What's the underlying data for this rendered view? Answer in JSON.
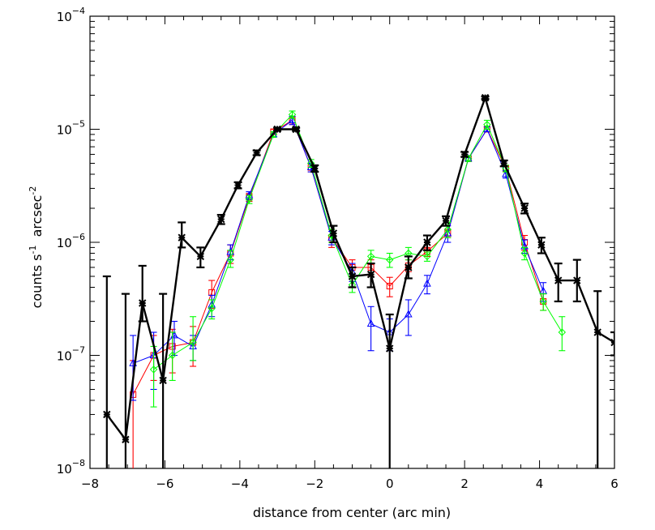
{
  "chart_data": {
    "type": "scatter",
    "xlabel": "distance from center (arc min)",
    "ylabel": {
      "text": "counts s",
      "sup1": "-1",
      "mid": "  arcsec",
      "sup2": "-2"
    },
    "xlim": [
      -8,
      6
    ],
    "ylim": [
      1e-08,
      0.0001
    ],
    "yscale": "log",
    "grid": false,
    "legend": "none",
    "x_ticks": [
      -8,
      -6,
      -4,
      -2,
      0,
      2,
      4,
      6
    ],
    "x_tick_labels": [
      "−8",
      "−6",
      "−4",
      "−2",
      "0",
      "2",
      "4",
      "6"
    ],
    "y_ticks": [
      {
        "base": "10",
        "exp": "−8",
        "value": 1e-08
      },
      {
        "base": "10",
        "exp": "−7",
        "value": 1e-07
      },
      {
        "base": "10",
        "exp": "−6",
        "value": 1e-06
      },
      {
        "base": "10",
        "exp": "−5",
        "value": 1e-05
      },
      {
        "base": "10",
        "exp": "−4",
        "value": 0.0001
      }
    ],
    "series": [
      {
        "color": "#ff0000",
        "marker": "square",
        "line_width": 1,
        "points": [
          [
            -6.85,
            4.5e-08,
            1e-08,
            9e-08
          ],
          [
            -6.3,
            1e-07,
            6e-08,
            1.5e-07
          ],
          [
            -5.8,
            1.2e-07,
            7e-08,
            1.7e-07
          ],
          [
            -5.25,
            1.3e-07,
            8e-08,
            1.8e-07
          ],
          [
            -4.75,
            3.6e-07,
            2.6e-07,
            4.6e-07
          ],
          [
            -4.25,
            8e-07,
            6.5e-07,
            9.5e-07
          ],
          [
            -3.75,
            2.5e-06,
            2.3e-06,
            2.7e-06
          ],
          [
            -3.1,
            9.5e-06,
            9e-06,
            1e-05
          ],
          [
            -2.6,
            1.2e-05,
            1.1e-05,
            1.3e-05
          ],
          [
            -2.1,
            4.6e-06,
            4.2e-06,
            5e-06
          ],
          [
            -1.55,
            1.1e-06,
            9e-07,
            1.3e-06
          ],
          [
            -1.0,
            6e-07,
            5e-07,
            7e-07
          ],
          [
            -0.5,
            6e-07,
            5e-07,
            7e-07
          ],
          [
            0.0,
            4.1e-07,
            3.3e-07,
            4.9e-07
          ],
          [
            0.5,
            6.2e-07,
            5.5e-07,
            7e-07
          ],
          [
            1.0,
            8.3e-07,
            7.5e-07,
            9e-07
          ],
          [
            1.55,
            1.2e-06,
            1.1e-06,
            1.3e-06
          ],
          [
            2.1,
            5.5e-06,
            5.2e-06,
            5.8e-06
          ],
          [
            2.6,
            1e-05,
            9.5e-06,
            1.05e-05
          ],
          [
            3.1,
            4.5e-06,
            4.2e-06,
            4.8e-06
          ],
          [
            3.6,
            1e-06,
            8.5e-07,
            1.15e-06
          ],
          [
            4.1,
            3e-07,
            2.5e-07,
            3.5e-07
          ]
        ]
      },
      {
        "color": "#0000ff",
        "marker": "triangle",
        "line_width": 1,
        "points": [
          [
            -6.85,
            8.5e-08,
            4e-08,
            1.5e-07
          ],
          [
            -6.3,
            1e-07,
            5e-08,
            1.6e-07
          ],
          [
            -5.75,
            1.5e-07,
            1e-07,
            2e-07
          ],
          [
            -5.25,
            1.2e-07,
            9e-08,
            1.5e-07
          ],
          [
            -4.75,
            2.8e-07,
            2.2e-07,
            3.4e-07
          ],
          [
            -4.25,
            8.2e-07,
            7e-07,
            9.5e-07
          ],
          [
            -3.75,
            2.6e-06,
            2.4e-06,
            2.8e-06
          ],
          [
            -3.1,
            9e-06,
            8.5e-06,
            9.5e-06
          ],
          [
            -2.6,
            1.2e-05,
            1.1e-05,
            1.3e-05
          ],
          [
            -2.1,
            4.6e-06,
            4.2e-06,
            5e-06
          ],
          [
            -1.55,
            1.1e-06,
            9.5e-07,
            1.25e-06
          ],
          [
            -1.0,
            5.5e-07,
            4.5e-07,
            6.5e-07
          ],
          [
            -0.5,
            1.9e-07,
            1.1e-07,
            2.7e-07
          ],
          [
            0.0,
            1.6e-07,
            1.1e-07,
            2.1e-07
          ],
          [
            0.5,
            2.3e-07,
            1.5e-07,
            3.1e-07
          ],
          [
            1.0,
            4.3e-07,
            3.5e-07,
            5.1e-07
          ],
          [
            1.55,
            1.2e-06,
            1e-06,
            1.4e-06
          ],
          [
            2.1,
            5.5e-06,
            5.2e-06,
            5.8e-06
          ],
          [
            2.6,
            1e-05,
            9.5e-06,
            1.05e-05
          ],
          [
            3.1,
            4e-06,
            3.7e-06,
            4.3e-06
          ],
          [
            3.6,
            9.2e-07,
            8e-07,
            1.05e-06
          ],
          [
            4.1,
            3.7e-07,
            3e-07,
            4.4e-07
          ]
        ]
      },
      {
        "color": "#00ff00",
        "marker": "diamond",
        "line_width": 1,
        "points": [
          [
            -6.3,
            7.5e-08,
            3.5e-08,
            1.2e-07
          ],
          [
            -5.8,
            1e-07,
            6e-08,
            1.6e-07
          ],
          [
            -5.25,
            1.3e-07,
            9e-08,
            2.2e-07
          ],
          [
            -4.75,
            2.6e-07,
            2.1e-07,
            3.1e-07
          ],
          [
            -4.25,
            7e-07,
            6e-07,
            8.5e-07
          ],
          [
            -3.75,
            2.4e-06,
            2.2e-06,
            2.6e-06
          ],
          [
            -3.1,
            9e-06,
            8.5e-06,
            9.5e-06
          ],
          [
            -2.6,
            1.35e-05,
            1.25e-05,
            1.45e-05
          ],
          [
            -2.1,
            5e-06,
            4.6e-06,
            5.4e-06
          ],
          [
            -1.55,
            1.15e-06,
            1e-06,
            1.3e-06
          ],
          [
            -1.0,
            4.2e-07,
            3.6e-07,
            4.8e-07
          ],
          [
            -0.5,
            7.5e-07,
            6.5e-07,
            8.5e-07
          ],
          [
            0.0,
            7e-07,
            6e-07,
            8e-07
          ],
          [
            0.5,
            8e-07,
            7e-07,
            9e-07
          ],
          [
            1.0,
            7.5e-07,
            6.8e-07,
            8.2e-07
          ],
          [
            1.55,
            1.3e-06,
            1.1e-06,
            1.5e-06
          ],
          [
            2.1,
            5.5e-06,
            5.2e-06,
            5.8e-06
          ],
          [
            2.6,
            1.1e-05,
            1e-05,
            1.2e-05
          ],
          [
            3.1,
            4.5e-06,
            4.2e-06,
            4.8e-06
          ],
          [
            3.6,
            8e-07,
            7e-07,
            9e-07
          ],
          [
            4.1,
            3e-07,
            2.5e-07,
            3.5e-07
          ],
          [
            4.6,
            1.6e-07,
            1.1e-07,
            2.2e-07
          ]
        ]
      },
      {
        "color": "#000000",
        "marker": "asterisk",
        "line_width": 2.4,
        "points": [
          [
            -7.55,
            3e-08,
            1e-08,
            5e-07
          ],
          [
            -7.05,
            1.8e-08,
            1e-08,
            3.5e-07
          ],
          [
            -6.6,
            2.9e-07,
            2e-07,
            6.2e-07
          ],
          [
            -6.05,
            6e-08,
            1e-08,
            3.5e-07
          ],
          [
            -5.55,
            1.1e-06,
            9e-07,
            1.5e-06
          ],
          [
            -5.05,
            7.5e-07,
            6e-07,
            9e-07
          ],
          [
            -4.5,
            1.6e-06,
            1.45e-06,
            1.75e-06
          ],
          [
            -4.05,
            3.2e-06,
            3e-06,
            3.4e-06
          ],
          [
            -3.55,
            6.2e-06,
            5.9e-06,
            6.5e-06
          ],
          [
            -3.0,
            1e-05,
            9.7e-06,
            1.03e-05
          ],
          [
            -2.5,
            1e-05,
            9.7e-06,
            1.03e-05
          ],
          [
            -2.0,
            4.5e-06,
            4.2e-06,
            4.8e-06
          ],
          [
            -1.5,
            1.2e-06,
            1e-06,
            1.4e-06
          ],
          [
            -1.0,
            5e-07,
            4e-07,
            6e-07
          ],
          [
            -0.5,
            5.2e-07,
            4e-07,
            6.5e-07
          ],
          [
            0.0,
            1.15e-07,
            1e-08,
            2.3e-07
          ],
          [
            0.5,
            6e-07,
            4.8e-07,
            7.5e-07
          ],
          [
            1.0,
            1e-06,
            8.5e-07,
            1.15e-06
          ],
          [
            1.5,
            1.55e-06,
            1.4e-06,
            1.7e-06
          ],
          [
            2.0,
            6e-06,
            5.7e-06,
            6.3e-06
          ],
          [
            2.55,
            1.9e-05,
            1.85e-05,
            1.95e-05
          ],
          [
            3.05,
            5e-06,
            4.7e-06,
            5.3e-06
          ],
          [
            3.6,
            2e-06,
            1.8e-06,
            2.2e-06
          ],
          [
            4.05,
            9.5e-07,
            8e-07,
            1.1e-06
          ],
          [
            4.5,
            4.6e-07,
            3e-07,
            6.5e-07
          ],
          [
            5.0,
            4.6e-07,
            3e-07,
            7e-07
          ],
          [
            5.55,
            1.6e-07,
            1e-08,
            3.7e-07
          ],
          [
            6.0,
            1.3e-07,
            1e-07,
            1.6e-07
          ]
        ]
      }
    ]
  }
}
